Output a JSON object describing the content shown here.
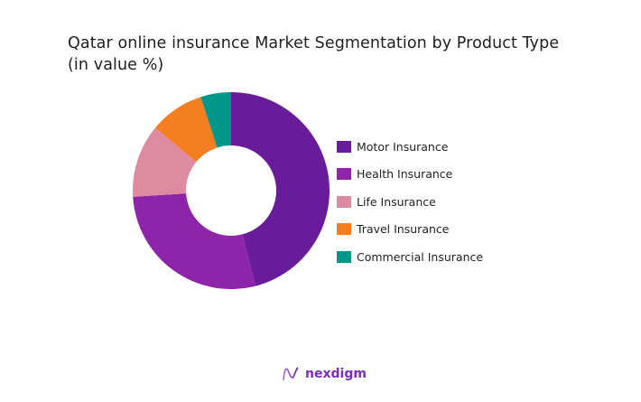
{
  "title": {
    "line1": "Qatar online insurance Market Segmentation by Product Type",
    "line2": "(in value %)"
  },
  "chart_data": {
    "type": "pie",
    "variant": "donut",
    "title": "Qatar online insurance Market Segmentation by Product Type (in value %)",
    "categories": [
      "Motor Insurance",
      "Health Insurance",
      "Life Insurance",
      "Travel Insurance",
      "Commercial Insurance"
    ],
    "values": [
      46,
      28,
      12,
      9,
      5
    ],
    "colors": [
      "#6a1b9a",
      "#8e24aa",
      "#de8aa0",
      "#f47f20",
      "#00978a"
    ],
    "unit": "%",
    "legend_position": "right",
    "start_angle": "12 o'clock, clockwise"
  },
  "legend": {
    "items": [
      {
        "label": "Motor Insurance",
        "color": "#6a1b9a"
      },
      {
        "label": "Health Insurance",
        "color": "#8e24aa"
      },
      {
        "label": "Life Insurance",
        "color": "#de8aa0"
      },
      {
        "label": "Travel Insurance",
        "color": "#f47f20"
      },
      {
        "label": "Commercial Insurance",
        "color": "#00978a"
      }
    ]
  },
  "brand": {
    "name": "nexdigm",
    "logo_icon": "nexdigm-wave-logo",
    "color": "#7b2cbf"
  }
}
